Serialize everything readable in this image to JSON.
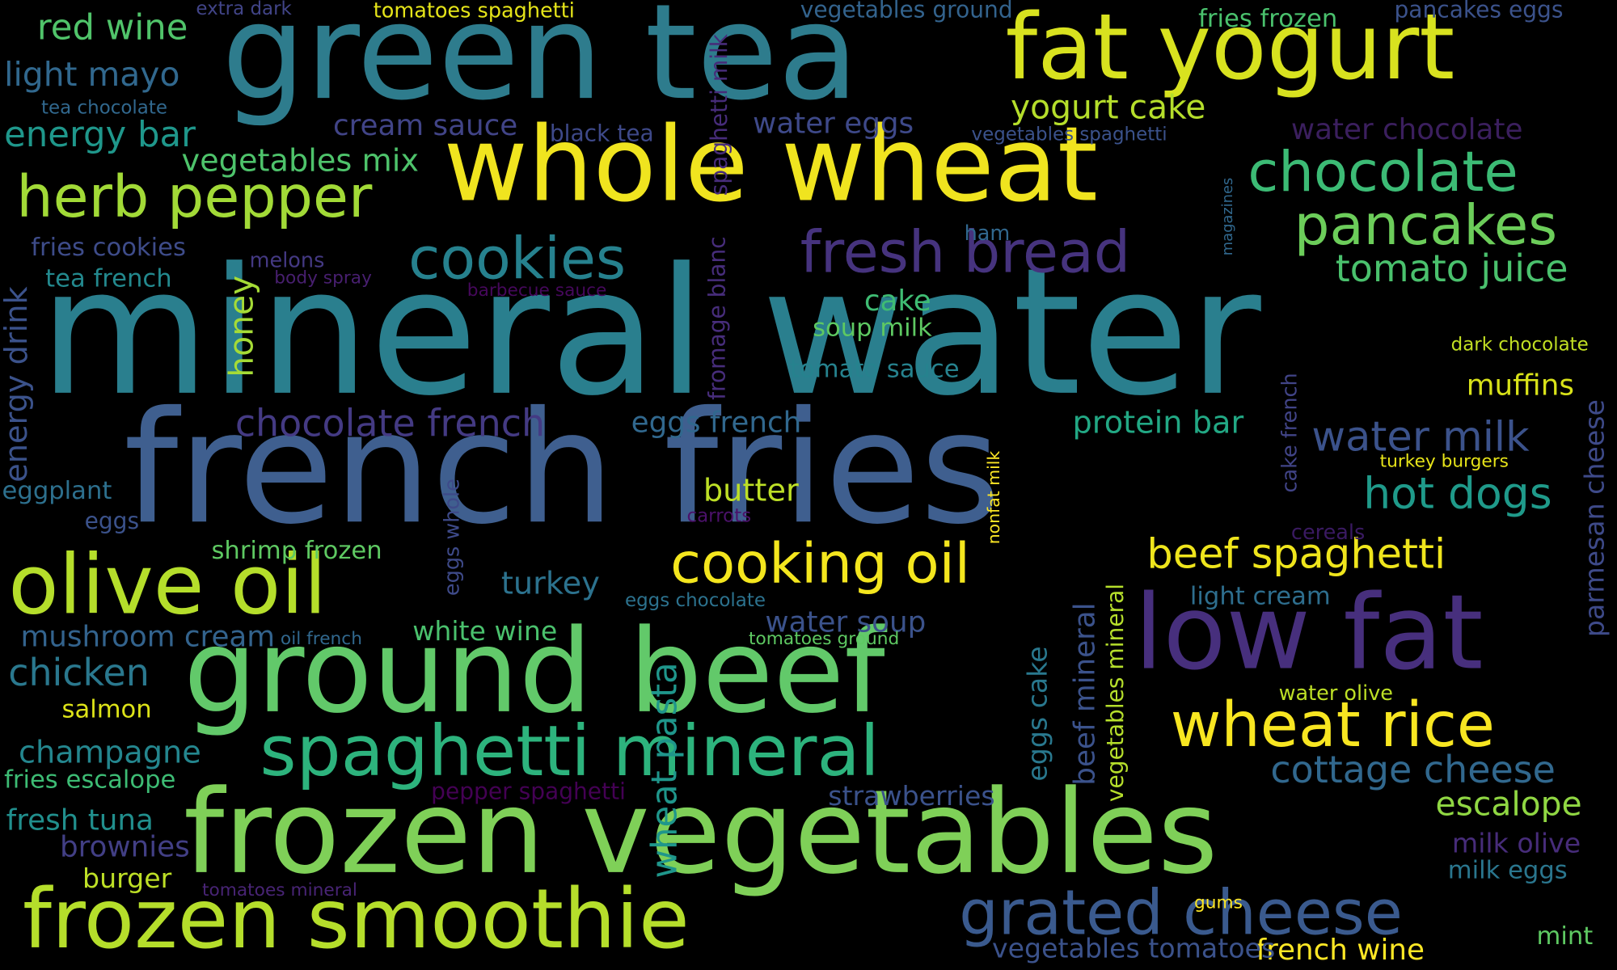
{
  "background": "#000000",
  "words": [
    {
      "text": "mineral water",
      "color": "#2a7f8e"
    },
    {
      "text": "french fries",
      "color": "#3f5f8f"
    },
    {
      "text": "green tea",
      "color": "#2e7c8d"
    },
    {
      "text": "frozen vegetables",
      "color": "#7fd058"
    },
    {
      "text": "whole wheat",
      "color": "#f0e41f"
    },
    {
      "text": "ground beef",
      "color": "#62c96a"
    },
    {
      "text": "fat yogurt",
      "color": "#d8e21f"
    },
    {
      "text": "low fat",
      "color": "#472f7d"
    },
    {
      "text": "frozen smoothie",
      "color": "#b5de2b"
    },
    {
      "text": "olive oil",
      "color": "#b5de2b"
    },
    {
      "text": "spaghetti mineral",
      "color": "#2db37d"
    },
    {
      "text": "grated cheese",
      "color": "#3a5a8e"
    },
    {
      "text": "cooking oil",
      "color": "#f4e61e"
    },
    {
      "text": "wheat rice",
      "color": "#f8e621"
    },
    {
      "text": "herb pepper",
      "color": "#a2da37"
    },
    {
      "text": "chocolate",
      "color": "#3cbb75"
    },
    {
      "text": "pancakes",
      "color": "#6ccd5a"
    },
    {
      "text": "fresh bread",
      "color": "#46337e"
    },
    {
      "text": "cookies",
      "color": "#26818e"
    },
    {
      "text": "beef spaghetti",
      "color": "#efe51c"
    },
    {
      "text": "hot dogs",
      "color": "#1f9a8a"
    },
    {
      "text": "water milk",
      "color": "#3b528b"
    },
    {
      "text": "tomato juice",
      "color": "#4ac16d"
    },
    {
      "text": "cottage cheese",
      "color": "#31688e"
    },
    {
      "text": "escalope",
      "color": "#90d743"
    },
    {
      "text": "chocolate french",
      "color": "#443a83"
    },
    {
      "text": "red wine",
      "color": "#50c46a"
    },
    {
      "text": "light mayo",
      "color": "#31688e"
    },
    {
      "text": "energy bar",
      "color": "#1f978b"
    },
    {
      "text": "chicken",
      "color": "#2a788e"
    },
    {
      "text": "champagne",
      "color": "#24868e"
    },
    {
      "text": "fresh tuna",
      "color": "#218f8d"
    },
    {
      "text": "mushroom cream",
      "color": "#33638d"
    },
    {
      "text": "vegetables mix",
      "color": "#4ec36b"
    },
    {
      "text": "cream sauce",
      "color": "#414487"
    },
    {
      "text": "yogurt cake",
      "color": "#b5de2b"
    },
    {
      "text": "water eggs",
      "color": "#3e4989"
    },
    {
      "text": "protein bar",
      "color": "#22a884"
    },
    {
      "text": "eggs french",
      "color": "#31688e"
    },
    {
      "text": "turkey",
      "color": "#2c728e"
    },
    {
      "text": "butter",
      "color": "#bddf26"
    },
    {
      "text": "muffins",
      "color": "#d8e219"
    },
    {
      "text": "water chocolate",
      "color": "#3b1f5e"
    },
    {
      "text": "brownies",
      "color": "#423f85"
    },
    {
      "text": "light cream",
      "color": "#2e6e8e"
    },
    {
      "text": "strawberries",
      "color": "#3b528b"
    },
    {
      "text": "water soup",
      "color": "#3b528b"
    },
    {
      "text": "white wine",
      "color": "#4ac16d"
    },
    {
      "text": "shrimp frozen",
      "color": "#5ec962"
    },
    {
      "text": "burger",
      "color": "#bddf26"
    },
    {
      "text": "salmon",
      "color": "#dde318"
    },
    {
      "text": "fries escalope",
      "color": "#3dbc74"
    },
    {
      "text": "milk olive",
      "color": "#472c7a"
    },
    {
      "text": "milk eggs",
      "color": "#2a768e"
    },
    {
      "text": "french wine",
      "color": "#fde725"
    },
    {
      "text": "vegetables tomatoes",
      "color": "#3b528b"
    },
    {
      "text": "mint",
      "color": "#5ec962"
    },
    {
      "text": "cake",
      "color": "#3fbc73"
    },
    {
      "text": "soup milk",
      "color": "#5ec962"
    },
    {
      "text": "tomato sauce",
      "color": "#26828e"
    },
    {
      "text": "fries cookies",
      "color": "#3e4c8a"
    },
    {
      "text": "tea french",
      "color": "#23898e"
    },
    {
      "text": "eggplant",
      "color": "#2d708e"
    },
    {
      "text": "eggs",
      "color": "#3b528b"
    },
    {
      "text": "fries frozen",
      "color": "#4ac16d"
    },
    {
      "text": "pancakes eggs",
      "color": "#3b528b"
    },
    {
      "text": "vegetables ground",
      "color": "#33638d"
    },
    {
      "text": "tomatoes spaghetti",
      "color": "#e5e419"
    },
    {
      "text": "extra dark",
      "color": "#414487"
    },
    {
      "text": "tea chocolate",
      "color": "#31688e"
    },
    {
      "text": "black tea",
      "color": "#3e4989"
    },
    {
      "text": "vegetables spaghetti",
      "color": "#3b528b"
    },
    {
      "text": "ham",
      "color": "#31688e"
    },
    {
      "text": "melons",
      "color": "#443983"
    },
    {
      "text": "body spray",
      "color": "#481f70"
    },
    {
      "text": "barbecue sauce",
      "color": "#46085c"
    },
    {
      "text": "dark chocolate",
      "color": "#c2df23"
    },
    {
      "text": "turkey burgers",
      "color": "#e7e419"
    },
    {
      "text": "cereals",
      "color": "#3a1a62"
    },
    {
      "text": "carrots",
      "color": "#4b116a"
    },
    {
      "text": "eggs chocolate",
      "color": "#2c728e"
    },
    {
      "text": "oil french",
      "color": "#31688e"
    },
    {
      "text": "tomatoes ground",
      "color": "#5ec962"
    },
    {
      "text": "water olive",
      "color": "#bddf26"
    },
    {
      "text": "pepper spaghetti",
      "color": "#440154"
    },
    {
      "text": "tomatoes mineral",
      "color": "#482475"
    },
    {
      "text": "gums",
      "color": "#fde725"
    },
    {
      "text": "spaghetti milk",
      "color": "#472c7a"
    },
    {
      "text": "fromage blanc",
      "color": "#472d7b"
    },
    {
      "text": "wheat pasta",
      "color": "#1f968b"
    },
    {
      "text": "magazines",
      "color": "#31688e"
    },
    {
      "text": "energy drink",
      "color": "#3b528b"
    },
    {
      "text": "honey",
      "color": "#a5db36"
    },
    {
      "text": "eggs whole",
      "color": "#3e4a89"
    },
    {
      "text": "nonfat milk",
      "color": "#fde725"
    },
    {
      "text": "beef mineral",
      "color": "#3b528b"
    },
    {
      "text": "vegetables mineral",
      "color": "#b5de2b"
    },
    {
      "text": "eggs cake",
      "color": "#29788e"
    },
    {
      "text": "cake french",
      "color": "#414487"
    },
    {
      "text": "parmesan cheese",
      "color": "#3e4a89"
    }
  ]
}
